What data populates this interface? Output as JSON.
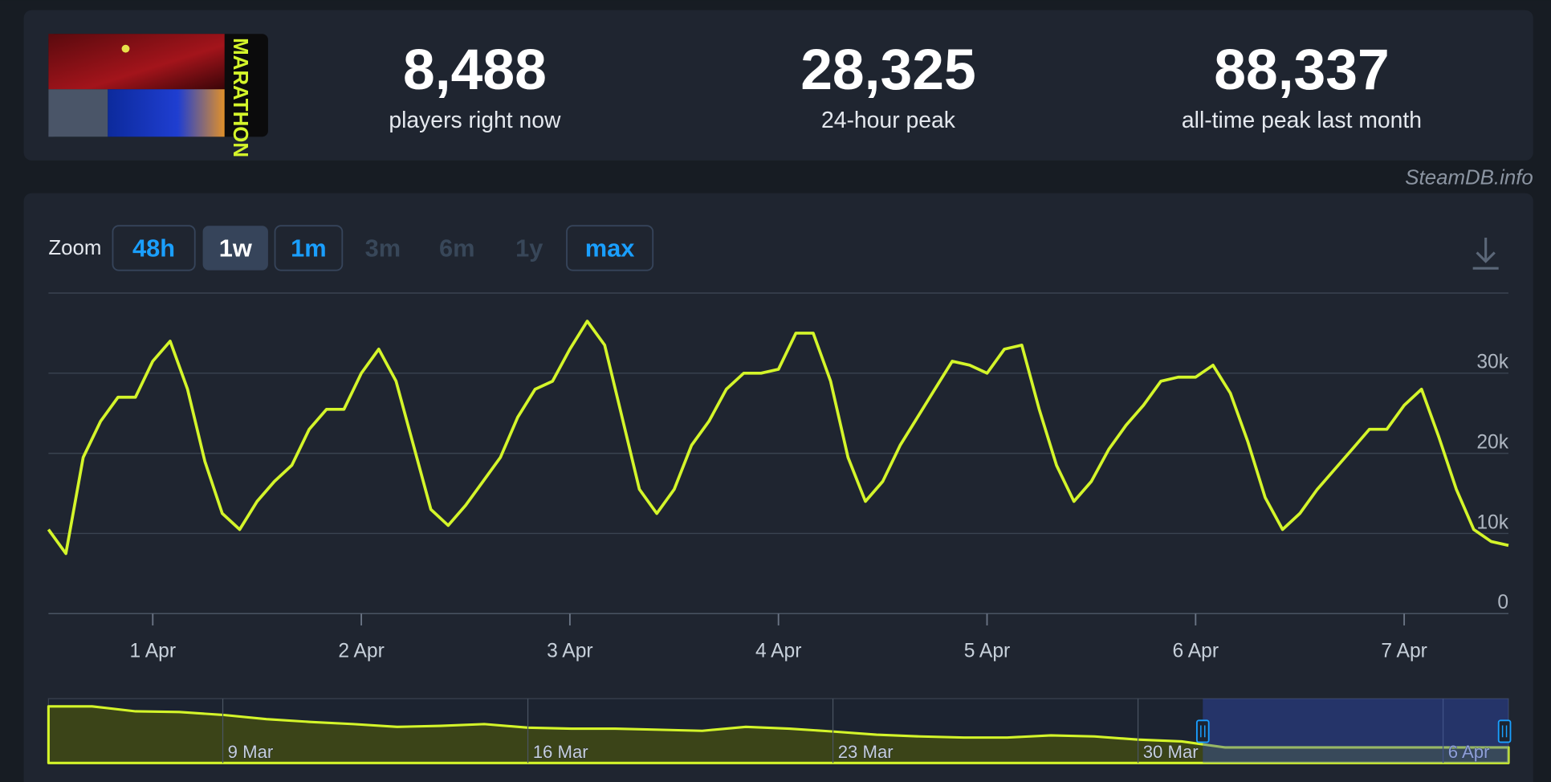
{
  "header": {
    "logo_text": "MARATHON",
    "stats": [
      {
        "value": "8,488",
        "label": "players right now"
      },
      {
        "value": "28,325",
        "label": "24-hour peak"
      },
      {
        "value": "88,337",
        "label": "all-time peak last month"
      }
    ]
  },
  "watermark": "SteamDB.info",
  "zoom": {
    "label": "Zoom",
    "options": [
      "48h",
      "1w",
      "1m",
      "3m",
      "6m",
      "1y",
      "max"
    ],
    "active": 1,
    "disabled": [
      3,
      4,
      5
    ]
  },
  "chart_data": [
    {
      "type": "line",
      "color": "#d4f52a",
      "values": [
        10500,
        7500,
        19500,
        24000,
        27000,
        27000,
        31500,
        34000,
        28000,
        19000,
        12500,
        10500,
        14000,
        16500,
        18500,
        23000,
        25500,
        25500,
        30000,
        33000,
        29000,
        21000,
        13000,
        11000,
        13500,
        16500,
        19500,
        24500,
        28000,
        29000,
        33000,
        36500,
        33500,
        24500,
        15500,
        12500,
        15500,
        21000,
        24000,
        28000,
        30000,
        30000,
        30500,
        35000,
        35000,
        29000,
        19500,
        14000,
        16500,
        21000,
        24500,
        28000,
        31500,
        31000,
        30000,
        33000,
        33500,
        25500,
        18500,
        14000,
        16500,
        20500,
        23500,
        26000,
        29000,
        29500,
        29500,
        31000,
        27500,
        21500,
        14500,
        10500,
        12500,
        15500,
        18000,
        20500,
        23000,
        23000,
        26000,
        28000,
        22000,
        15500,
        10500,
        9000,
        8500
      ],
      "xlim": [
        0,
        84
      ],
      "xticks": [
        {
          "value": 6,
          "label": "1 Apr"
        },
        {
          "value": 18,
          "label": "2 Apr"
        },
        {
          "value": 30,
          "label": "3 Apr"
        },
        {
          "value": 42,
          "label": "4 Apr"
        },
        {
          "value": 54,
          "label": "5 Apr"
        },
        {
          "value": 66,
          "label": "6 Apr"
        },
        {
          "value": 78,
          "label": "7 Apr"
        }
      ],
      "ylim": [
        0,
        40000
      ],
      "yticks": [
        0,
        {
          "value": 10000,
          "label": "10k"
        },
        {
          "value": 20000,
          "label": "20k"
        },
        {
          "value": 30000,
          "label": "30k"
        }
      ],
      "grid": true
    },
    {
      "type": "area",
      "color": "#d4f52a",
      "values": [
        80000,
        80000,
        73000,
        72000,
        68000,
        62000,
        58000,
        55000,
        51000,
        52500,
        55000,
        50000,
        48500,
        48500,
        47000,
        45500,
        51000,
        48500,
        44500,
        40000,
        37500,
        36000,
        36000,
        39000,
        37500,
        33000,
        30500,
        22000,
        22000,
        22000,
        22000,
        22000,
        22000,
        22000
      ],
      "xlim": [
        0,
        33.5
      ],
      "xticks": [
        {
          "value": 4,
          "label": "9 Mar"
        },
        {
          "value": 11,
          "label": "16 Mar"
        },
        {
          "value": 18,
          "label": "23 Mar"
        },
        {
          "value": 25,
          "label": "30 Mar"
        },
        {
          "value": 32,
          "label": "6 Apr"
        }
      ],
      "ylim": [
        0,
        80000
      ]
    }
  ]
}
